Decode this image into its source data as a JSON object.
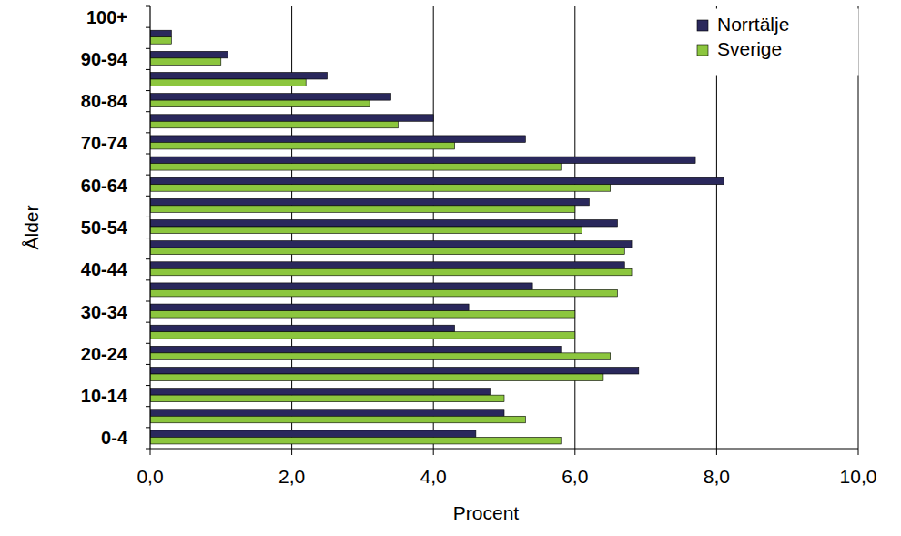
{
  "chart_data": {
    "type": "bar",
    "orientation": "horizontal",
    "x_label": "Procent",
    "y_label": "Ålder",
    "categories": [
      "0-4",
      null,
      "10-14",
      null,
      "20-24",
      null,
      "30-34",
      null,
      "40-44",
      null,
      "50-54",
      null,
      "60-64",
      null,
      "70-74",
      null,
      "80-84",
      null,
      "90-94",
      null,
      "100+"
    ],
    "series": [
      {
        "name": "Norrtälje",
        "color": "#2a285c",
        "values": [
          4.6,
          5.0,
          4.8,
          6.9,
          5.8,
          4.3,
          4.5,
          5.4,
          6.7,
          6.8,
          6.6,
          6.2,
          8.1,
          7.7,
          5.3,
          4.0,
          3.4,
          2.5,
          1.1,
          0.3,
          0.0
        ]
      },
      {
        "name": "Sverige",
        "color": "#8cc63e",
        "values": [
          5.8,
          5.3,
          5.0,
          6.4,
          6.5,
          6.0,
          6.0,
          6.6,
          6.8,
          6.7,
          6.1,
          6.0,
          6.5,
          5.8,
          4.3,
          3.5,
          3.1,
          2.2,
          1.0,
          0.3,
          0.0
        ]
      }
    ],
    "xlim": [
      0,
      10
    ],
    "xticks": [
      {
        "value": 0,
        "label": "0,0"
      },
      {
        "value": 2,
        "label": "2,0"
      },
      {
        "value": 4,
        "label": "4,0"
      },
      {
        "value": 6,
        "label": "6,0"
      },
      {
        "value": 8,
        "label": "8,0"
      },
      {
        "value": 10,
        "label": "10,0"
      }
    ],
    "grid": true,
    "legend": "top-right"
  }
}
